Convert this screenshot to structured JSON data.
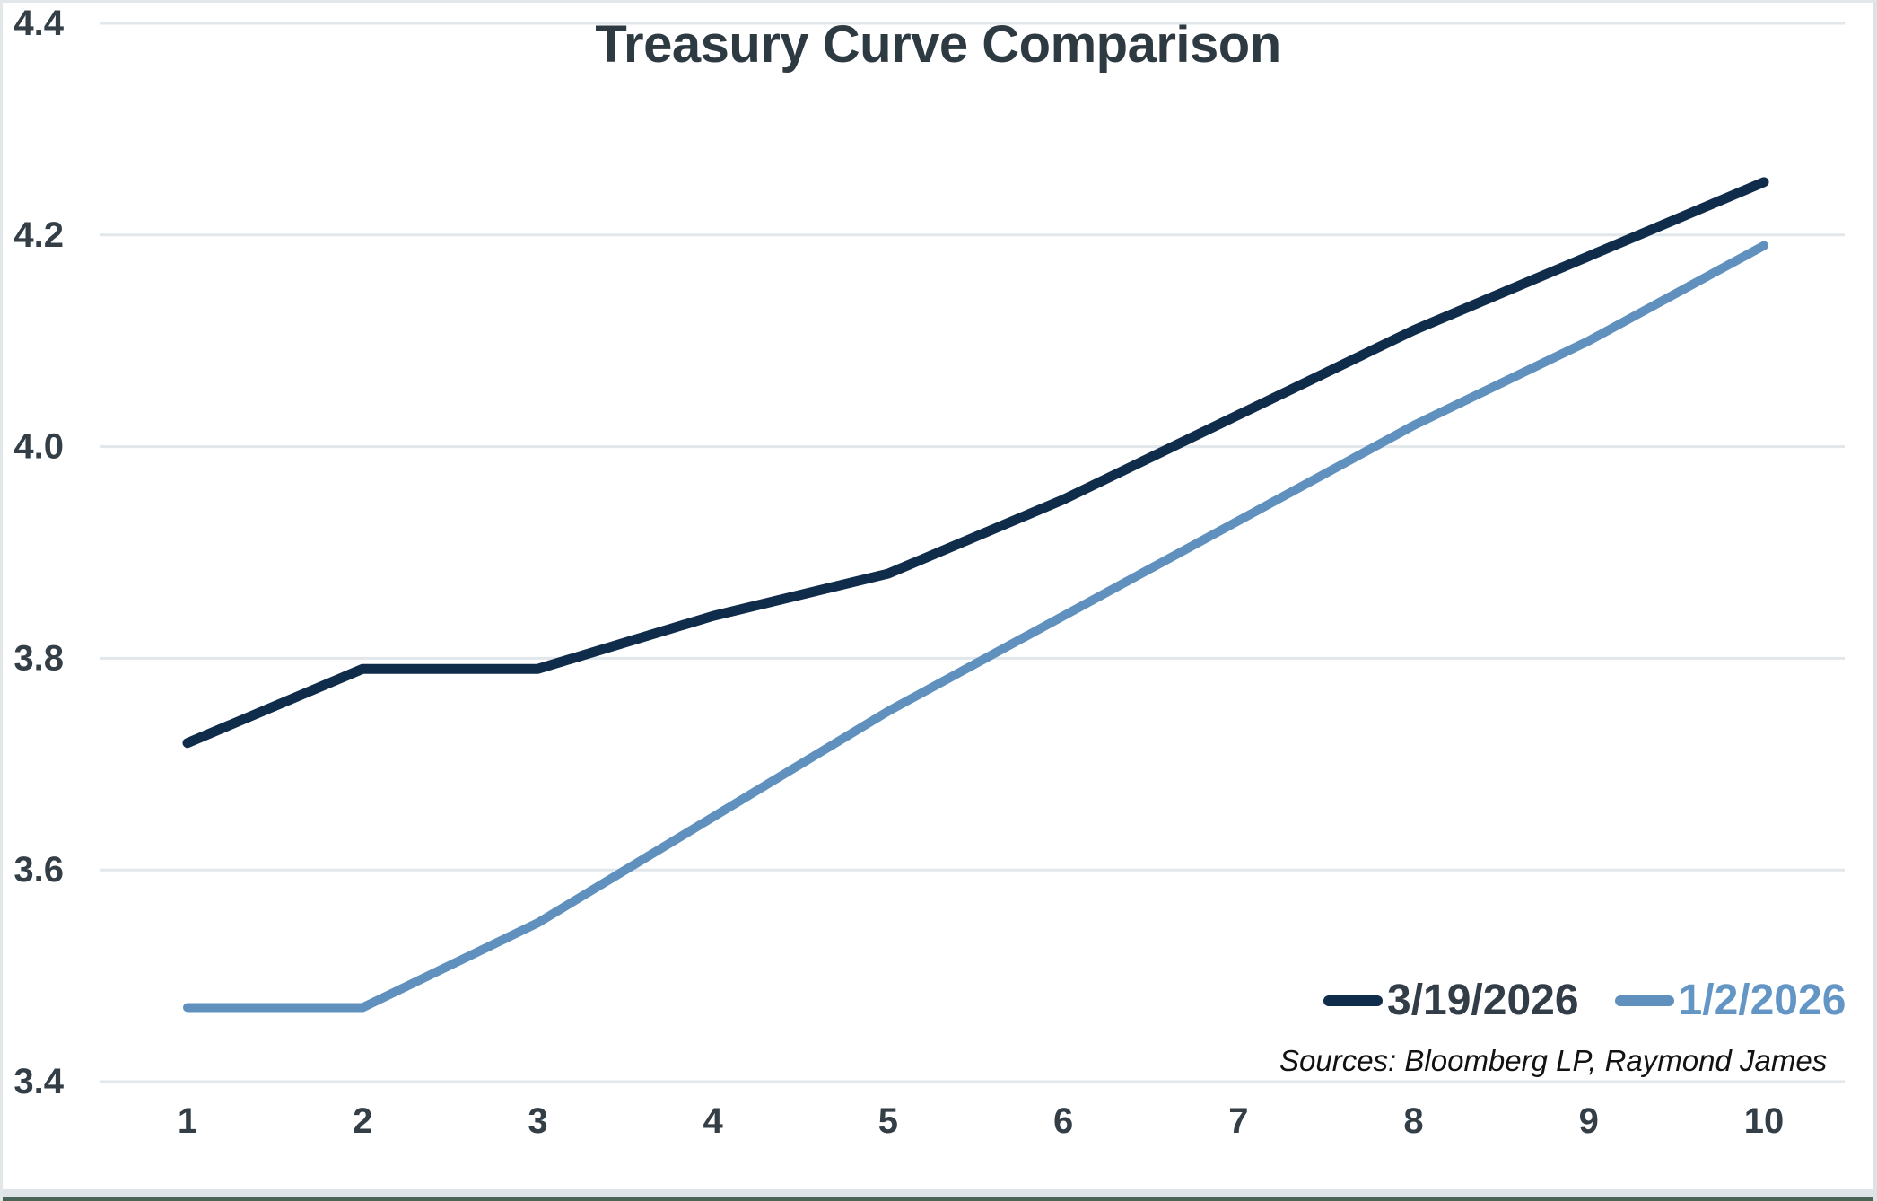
{
  "chart": {
    "title": "Treasury Curve Comparison",
    "sources": "Sources: Bloomberg LP, Raymond James"
  },
  "chart_data": {
    "type": "line",
    "title": "Treasury Curve Comparison",
    "xlabel": "",
    "ylabel": "",
    "x": [
      1,
      2,
      3,
      4,
      5,
      6,
      7,
      8,
      9,
      10
    ],
    "xticks": [
      "1",
      "2",
      "3",
      "4",
      "5",
      "6",
      "7",
      "8",
      "9",
      "10"
    ],
    "yticks": [
      "4.4",
      "4.2",
      "4.0",
      "3.8",
      "3.6",
      "3.4"
    ],
    "ylim": [
      3.4,
      4.4
    ],
    "grid": "horizontal",
    "gridline_color": "#e1e7ea",
    "tick_label_color": "#333e46",
    "title_color": "#2e3a42",
    "legend_position": "bottom-right",
    "annotation": "Sources: Bloomberg LP, Raymond James",
    "series": [
      {
        "name": "3/19/2026",
        "color": "#0f2c4b",
        "label_color": "#333d47",
        "values": [
          3.72,
          3.79,
          3.79,
          3.84,
          3.88,
          3.95,
          4.03,
          4.11,
          4.18,
          4.25
        ]
      },
      {
        "name": "1/2/2026",
        "color": "#5f90be",
        "label_color": "#6496c5",
        "values": [
          3.47,
          3.47,
          3.55,
          3.65,
          3.75,
          3.84,
          3.93,
          4.02,
          4.1,
          4.19
        ]
      }
    ]
  }
}
